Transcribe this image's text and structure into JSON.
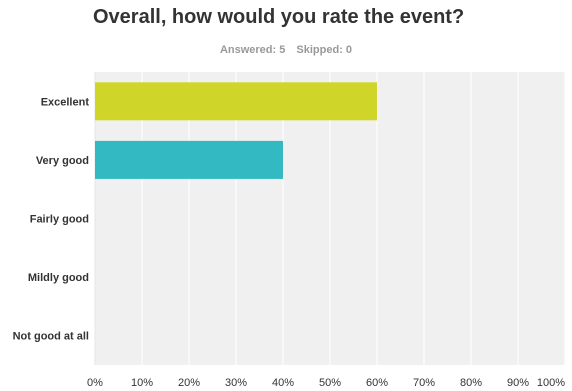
{
  "question": {
    "title": "Overall, how would you rate the event?",
    "answered": "Answered: 5",
    "skipped": "Skipped: 0"
  },
  "chart_data": {
    "type": "bar",
    "orientation": "horizontal",
    "categories": [
      "Excellent",
      "Very good",
      "Fairly good",
      "Mildly good",
      "Not good at all"
    ],
    "values": [
      60,
      40,
      0,
      0,
      0
    ],
    "bar_colors": [
      "#cfd629",
      "#33b9c1",
      "#cfd629",
      "#cfd629",
      "#cfd629"
    ],
    "xlim": [
      0,
      100
    ],
    "x_ticks": [
      "0%",
      "10%",
      "20%",
      "30%",
      "40%",
      "50%",
      "60%",
      "70%",
      "80%",
      "90%",
      "100%"
    ],
    "grid": true,
    "background": "#f0f0f0",
    "title": "",
    "xlabel": "",
    "ylabel": ""
  }
}
